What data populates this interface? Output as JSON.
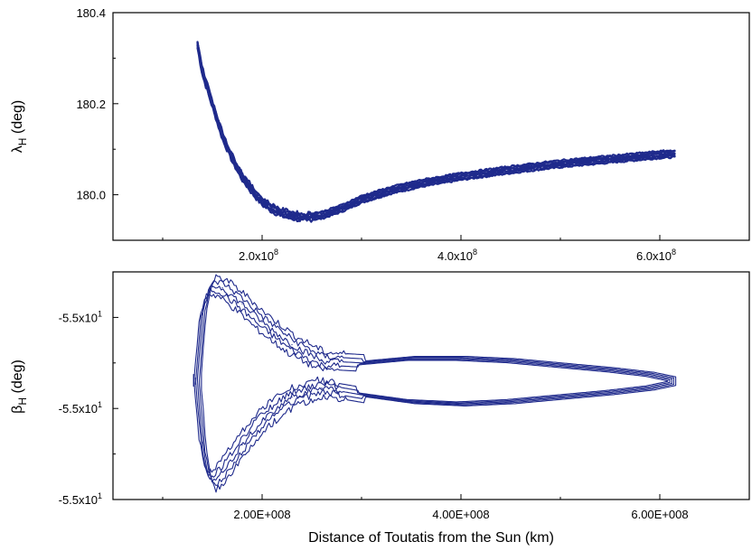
{
  "chart_data": [
    {
      "type": "line",
      "panel": "top",
      "title": "",
      "ylabel_symbol": "λ",
      "ylabel_subscript": "H",
      "ylabel_unit": " (deg)",
      "xlabel": "",
      "xlim": [
        50000000,
        690000000
      ],
      "ylim": [
        179.9,
        180.4
      ],
      "yticks": [
        {
          "value": 180.0,
          "label": "180.0"
        },
        {
          "value": 180.2,
          "label": "180.2"
        },
        {
          "value": 180.4,
          "label": "180.4"
        }
      ],
      "xticks": [
        {
          "value": 200000000,
          "mantissa": "2.0x10",
          "exp": "8"
        },
        {
          "value": 400000000,
          "mantissa": "4.0x10",
          "exp": "8"
        },
        {
          "value": 600000000,
          "mantissa": "6.0x10",
          "exp": "8"
        }
      ],
      "color": "#1f2a8c",
      "series": [
        {
          "x": [
            135000000,
            140000000,
            150000000,
            160000000,
            170000000,
            180000000,
            190000000,
            200000000,
            210000000,
            220000000,
            240000000,
            260000000,
            280000000,
            300000000,
            330000000,
            360000000,
            400000000,
            450000000,
            500000000,
            550000000,
            600000000,
            615000000
          ],
          "y": [
            180.33,
            180.27,
            180.2,
            180.13,
            180.08,
            180.04,
            180.01,
            179.985,
            179.97,
            179.96,
            179.95,
            179.955,
            179.97,
            179.99,
            180.01,
            180.025,
            180.04,
            180.055,
            180.068,
            180.078,
            180.088,
            180.09
          ],
          "band_width_deg": 0.015
        }
      ]
    },
    {
      "type": "line",
      "panel": "bottom",
      "title": "",
      "ylabel_symbol": "β",
      "ylabel_subscript": "H",
      "ylabel_unit": " (deg)",
      "xlabel": "Distance of Toutatis from the Sun (km)",
      "xlim": [
        50000000,
        690000000
      ],
      "ylim": [
        0,
        1
      ],
      "yticks": [
        {
          "value": 0.8,
          "mantissa": "-5.5x10",
          "exp": "1"
        },
        {
          "value": 0.4,
          "mantissa": "-5.5x10",
          "exp": "1"
        },
        {
          "value": 0.0,
          "mantissa": "-5.5x10",
          "exp": "1"
        }
      ],
      "xticks": [
        {
          "value": 200000000,
          "label": "2.00E+008"
        },
        {
          "value": 400000000,
          "label": "4.00E+008"
        },
        {
          "value": 600000000,
          "label": "6.00E+008"
        }
      ],
      "color": "#1f2a8c",
      "loops": [
        {
          "upper_x": [
            135000000,
            140000000,
            145000000,
            150000000,
            160000000,
            180000000,
            200000000,
            230000000,
            260000000,
            300000000,
            350000000,
            400000000,
            450000000,
            500000000,
            550000000,
            590000000,
            612000000
          ],
          "upper_y": [
            0.52,
            0.8,
            0.9,
            0.94,
            0.93,
            0.86,
            0.78,
            0.68,
            0.61,
            0.6,
            0.62,
            0.62,
            0.61,
            0.59,
            0.57,
            0.55,
            0.53
          ],
          "lower_x": [
            135000000,
            140000000,
            145000000,
            150000000,
            160000000,
            180000000,
            200000000,
            230000000,
            260000000,
            300000000,
            350000000,
            400000000,
            450000000,
            500000000,
            550000000,
            590000000,
            612000000
          ],
          "lower_y": [
            0.52,
            0.25,
            0.12,
            0.08,
            0.12,
            0.24,
            0.35,
            0.45,
            0.49,
            0.46,
            0.43,
            0.42,
            0.43,
            0.45,
            0.47,
            0.49,
            0.51
          ]
        }
      ]
    }
  ]
}
